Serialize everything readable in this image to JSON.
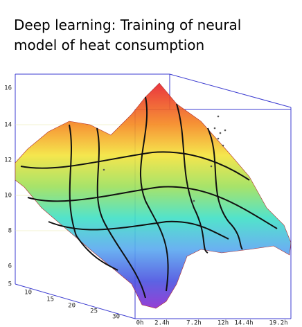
{
  "title_lines": [
    "Deep learning: Training of neural",
    "model of heat consumption"
  ],
  "axes": {
    "vertical_ticks": [
      16,
      14,
      12,
      10,
      8,
      6
    ],
    "depth_ticks": [
      5,
      10,
      15,
      20,
      25,
      30
    ],
    "time_ticks": [
      "0h",
      "2.4h",
      "7.2h",
      "12h",
      "14.4h",
      "19.2h"
    ]
  }
}
